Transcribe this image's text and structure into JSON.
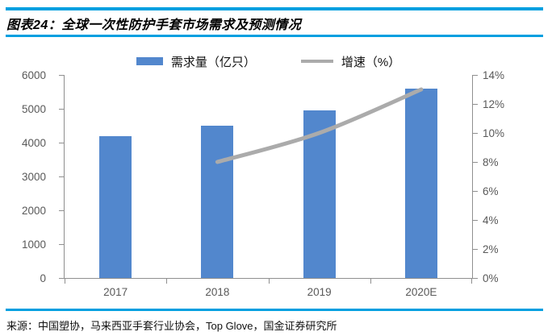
{
  "header": {
    "title": "图表24：全球一次性防护手套市场需求及预测情况"
  },
  "legend": {
    "items": [
      {
        "label": "需求量（亿只）",
        "type": "bar"
      },
      {
        "label": "增速（%）",
        "type": "line"
      }
    ]
  },
  "source": {
    "label": "来源：中国塑协，马来西亚手套行业协会，Top Glove，国金证券研究所"
  },
  "colors": {
    "bar_blue": "#5287CD",
    "line_gray": "#ABABAB",
    "rule_blue": "#009FE0",
    "axis_gray": "#8F8F8F",
    "tick_label_gray": "#595959"
  },
  "chart_data": {
    "type": "bar",
    "subtype": "combo-bar-line",
    "title": "全球一次性防护手套市场需求及预测情况",
    "categories": [
      "2017",
      "2018",
      "2019",
      "2020E"
    ],
    "series": [
      {
        "name": "需求量（亿只）",
        "type": "bar",
        "axis": "left",
        "values": [
          4200,
          4500,
          4950,
          5600
        ]
      },
      {
        "name": "增速（%）",
        "type": "line",
        "axis": "right",
        "values": [
          null,
          8.0,
          10.0,
          13.0
        ]
      }
    ],
    "left_axis": {
      "label": "",
      "ticks": [
        "0",
        "1000",
        "2000",
        "3000",
        "4000",
        "5000",
        "6000"
      ],
      "min": 0,
      "max": 6000
    },
    "right_axis": {
      "label": "",
      "ticks": [
        "0%",
        "2%",
        "4%",
        "6%",
        "8%",
        "10%",
        "12%",
        "14%"
      ],
      "min": 0,
      "max": 14
    },
    "grid": false,
    "legend_position": "top-center"
  }
}
